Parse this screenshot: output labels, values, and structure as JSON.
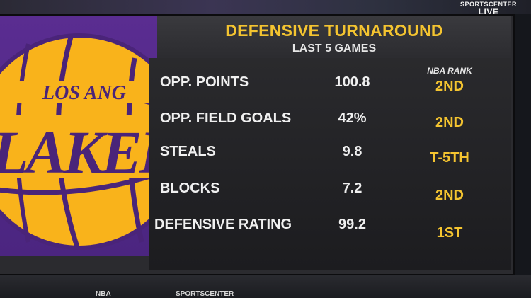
{
  "broadcast": {
    "live_line1": "SPORTSCENTER",
    "live_line2": "LIVE"
  },
  "logo": {
    "text": "LOS ANGELES LAKERS"
  },
  "graphic": {
    "title": "DEFENSIVE TURNAROUND",
    "subtitle": "LAST 5 GAMES",
    "rank_header": "NBA RANK",
    "rows": [
      {
        "label": "OPP. POINTS",
        "value": "100.8",
        "rank": "2ND"
      },
      {
        "label": "OPP. FIELD GOALS",
        "value": "42%",
        "rank": "2ND"
      },
      {
        "label": "STEALS",
        "value": "9.8",
        "rank": "T-5TH"
      },
      {
        "label": "BLOCKS",
        "value": "7.2",
        "rank": "2ND"
      },
      {
        "label": "DEFENSIVE RATING",
        "value": "99.2",
        "rank": "1ST"
      }
    ]
  },
  "bottom_bar": {
    "item1": "NBA",
    "item2": "SPORTSCENTER"
  },
  "colors": {
    "accent_gold": "#f4c430",
    "lakers_purple": "#552583",
    "text_white": "#f0f0f0"
  }
}
